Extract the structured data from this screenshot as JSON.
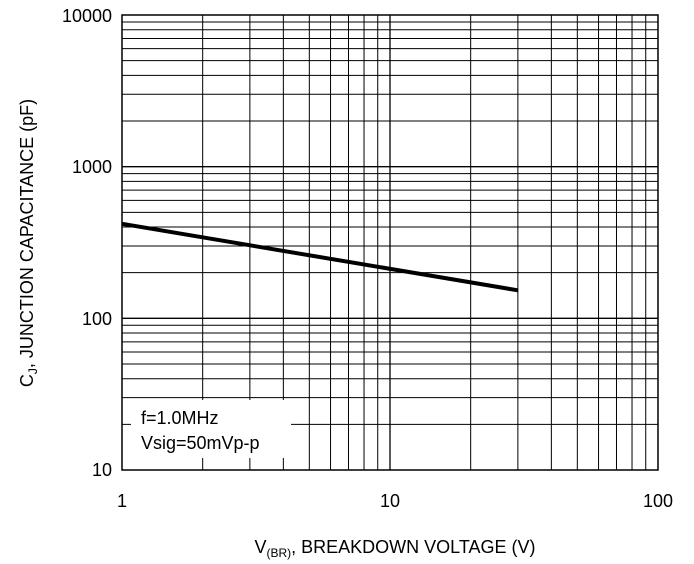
{
  "chart_data": {
    "type": "line",
    "xscale": "log",
    "yscale": "log",
    "xlim": [
      1,
      100
    ],
    "ylim": [
      10,
      10000
    ],
    "grid": true,
    "x_ticks": [
      "1",
      "10",
      "100"
    ],
    "y_ticks": [
      "10",
      "100",
      "1000",
      "10000"
    ],
    "xlabel": {
      "prefix": "V",
      "subscript": "(BR)",
      "suffix": ", BREAKDOWN VOLTAGE (V)"
    },
    "ylabel": {
      "prefix": "C",
      "subscript": "J",
      "suffix": ", JUNCTION CAPACITANCE (pF)"
    },
    "annotation": [
      "f=1.0MHz",
      "Vsig=50mVp-p"
    ],
    "series": [
      {
        "color": "#000000",
        "x": [
          1,
          30
        ],
        "y": [
          420,
          153
        ]
      }
    ]
  }
}
